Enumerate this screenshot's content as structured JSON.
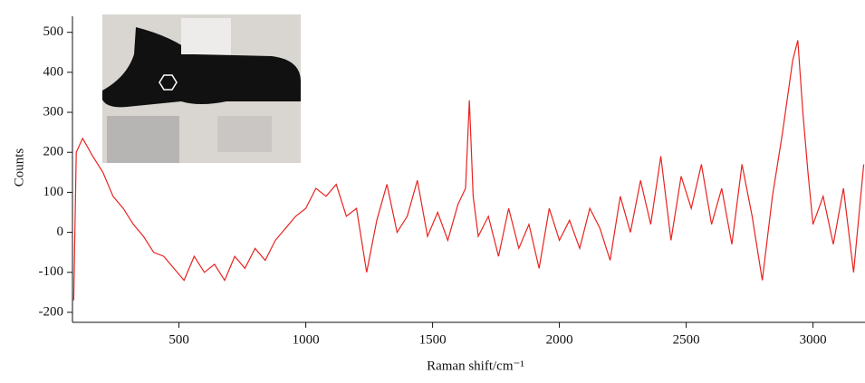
{
  "chart_data": {
    "type": "line",
    "x_label": "Raman shift/cm⁻¹",
    "y_label": "Counts",
    "series": [
      {
        "color": "#e8231f",
        "x": [
          85,
          95,
          120,
          160,
          200,
          240,
          280,
          320,
          360,
          400,
          440,
          480,
          520,
          560,
          600,
          640,
          680,
          720,
          760,
          800,
          840,
          880,
          920,
          960,
          1000,
          1040,
          1080,
          1120,
          1160,
          1200,
          1240,
          1280,
          1320,
          1360,
          1400,
          1440,
          1480,
          1520,
          1560,
          1600,
          1630,
          1645,
          1660,
          1680,
          1720,
          1760,
          1800,
          1840,
          1880,
          1920,
          1960,
          2000,
          2040,
          2080,
          2120,
          2160,
          2200,
          2240,
          2280,
          2320,
          2360,
          2400,
          2440,
          2480,
          2520,
          2560,
          2600,
          2640,
          2680,
          2720,
          2760,
          2800,
          2840,
          2880,
          2920,
          2940,
          2960,
          2980,
          3000,
          3040,
          3080,
          3120,
          3160,
          3200
        ],
        "values": [
          -170,
          200,
          235,
          190,
          150,
          90,
          60,
          20,
          -10,
          -50,
          -60,
          -90,
          -120,
          -60,
          -100,
          -80,
          -120,
          -60,
          -90,
          -40,
          -70,
          -20,
          10,
          40,
          60,
          110,
          90,
          120,
          40,
          60,
          -100,
          30,
          120,
          0,
          40,
          130,
          -10,
          50,
          -20,
          70,
          110,
          330,
          90,
          -10,
          40,
          -60,
          60,
          -40,
          20,
          -90,
          60,
          -20,
          30,
          -40,
          60,
          10,
          -70,
          90,
          0,
          130,
          20,
          190,
          -20,
          140,
          60,
          170,
          20,
          110,
          -30,
          170,
          40,
          -120,
          90,
          250,
          430,
          480,
          300,
          150,
          20,
          90,
          -30,
          110,
          -100,
          170
        ]
      }
    ],
    "xlim": [
      80,
      3205
    ],
    "ylim": [
      -225,
      540
    ],
    "xticks": [
      500,
      1000,
      1500,
      2000,
      2500,
      3000
    ],
    "yticks": [
      -200,
      -100,
      0,
      100,
      200,
      300,
      400,
      500
    ]
  }
}
